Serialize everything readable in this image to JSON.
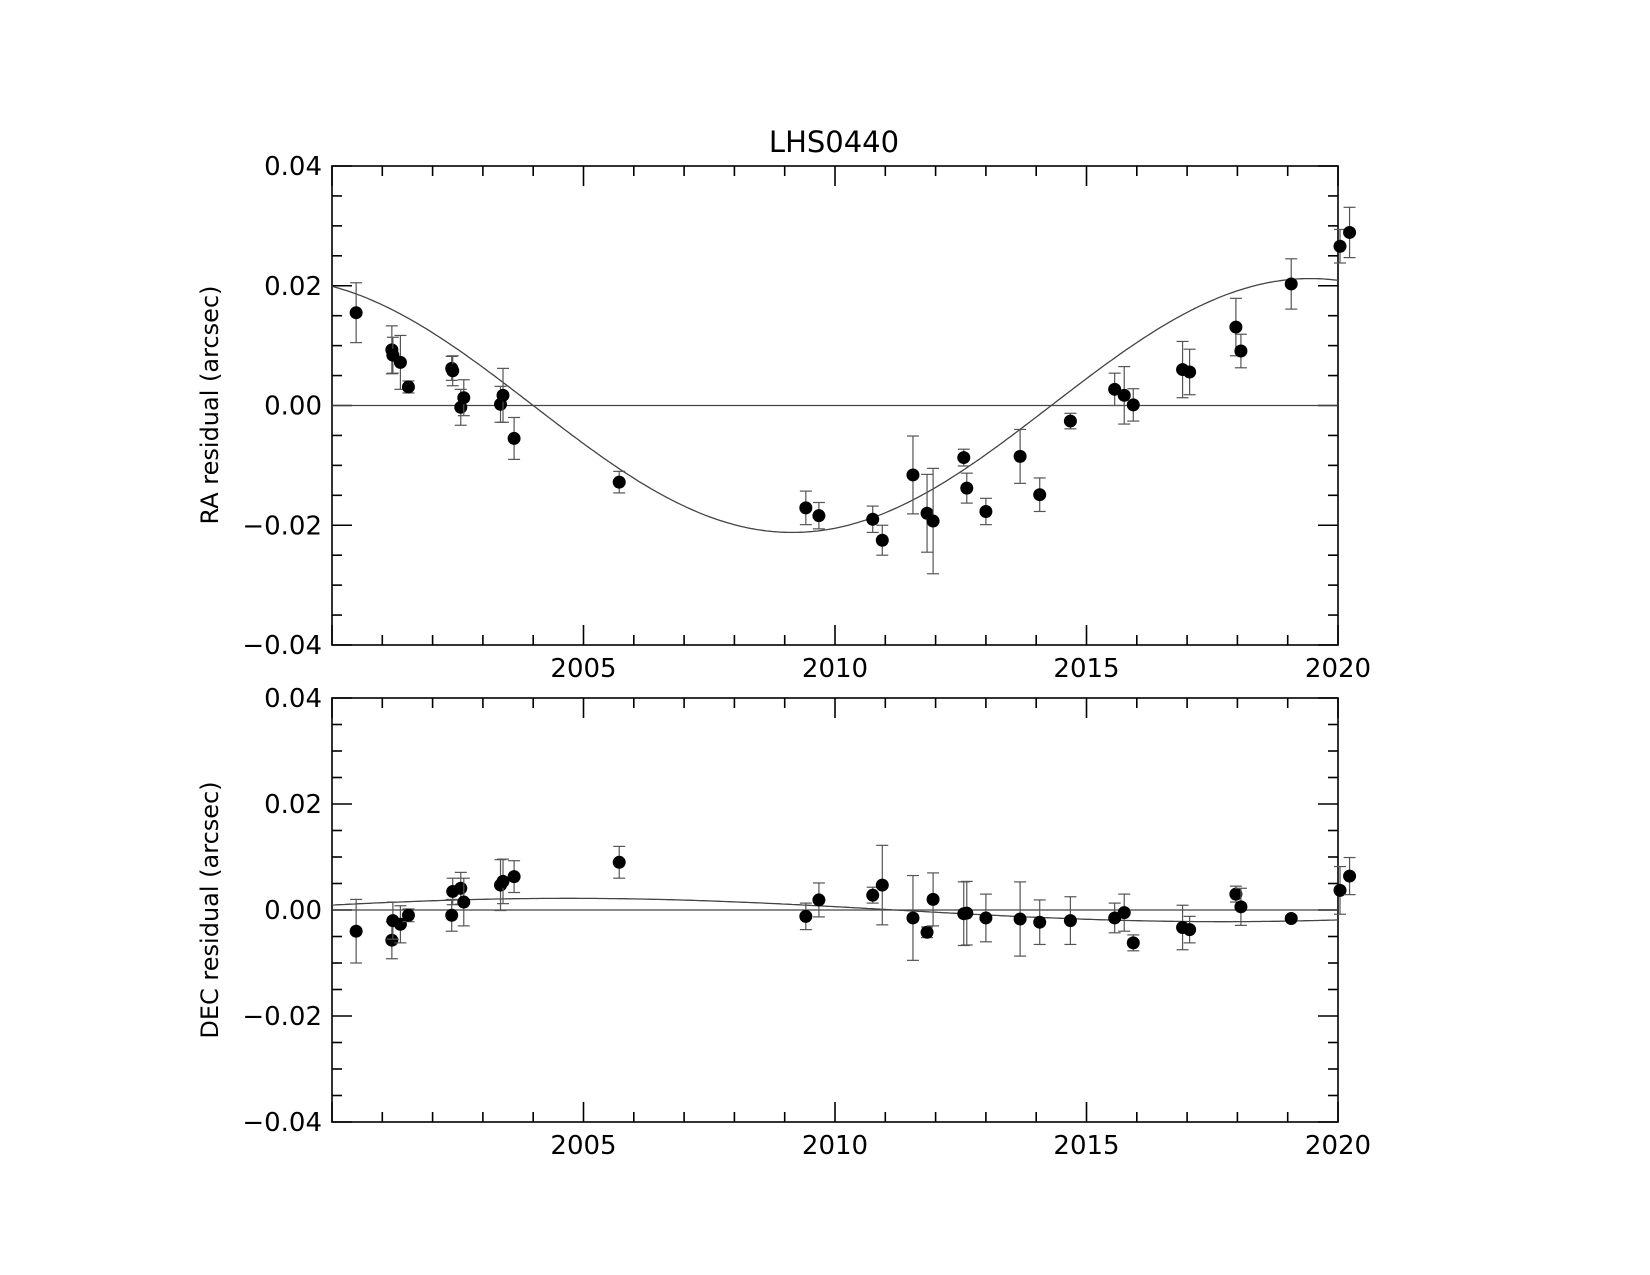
{
  "chart_data": [
    {
      "type": "scatter",
      "title": "LHS0440",
      "xlabel": "",
      "ylabel": "RA residual (arcsec)",
      "xlim": [
        2000.0,
        2020.0
      ],
      "ylim": [
        -0.04,
        0.04
      ],
      "xticks": [
        2005,
        2010,
        2015,
        2020
      ],
      "x_tick_labels": [
        "2005",
        "2010",
        "2015",
        "2020"
      ],
      "yticks": [
        -0.04,
        -0.02,
        0.0,
        0.02,
        0.04
      ],
      "y_tick_labels": [
        "−0.04",
        "−0.02",
        "0.00",
        "0.02",
        "0.04"
      ],
      "grid": false,
      "zero_line": true,
      "fit_curve": {
        "amplitude": 0.0212,
        "period_years": 20.6,
        "min_epoch": 2009.15,
        "offset": 0.0
      },
      "series": [
        {
          "x": [
            2000.48,
            2001.19,
            2001.21,
            2001.36,
            2001.52,
            2002.38,
            2002.4,
            2002.56,
            2002.62,
            2003.35,
            2003.4,
            2003.62,
            2005.71,
            2009.42,
            2009.68,
            2010.75,
            2010.94,
            2011.55,
            2011.83,
            2011.95,
            2012.56,
            2012.62,
            2013.0,
            2013.68,
            2014.07,
            2014.68,
            2015.56,
            2015.75,
            2015.93,
            2016.91,
            2017.05,
            2017.97,
            2018.07,
            2019.07,
            2020.04,
            2020.23
          ],
          "y": [
            0.0155,
            0.0093,
            0.0084,
            0.0072,
            0.0031,
            0.0062,
            0.0058,
            -0.0003,
            0.0013,
            0.0002,
            0.0017,
            -0.0055,
            -0.0128,
            -0.0171,
            -0.0184,
            -0.019,
            -0.0225,
            -0.0116,
            -0.018,
            -0.0193,
            -0.0087,
            -0.0138,
            -0.0177,
            -0.0085,
            -0.0149,
            -0.0026,
            0.0027,
            0.0017,
            0.0001,
            0.006,
            0.0056,
            0.0131,
            0.0091,
            0.0203,
            0.0266,
            0.0289
          ],
          "yerr": [
            0.005,
            0.004,
            0.003,
            0.0045,
            0.001,
            0.002,
            0.0025,
            0.003,
            0.003,
            0.003,
            0.0045,
            0.0035,
            0.0018,
            0.0028,
            0.0022,
            0.0022,
            0.0025,
            0.0065,
            0.0065,
            0.0088,
            0.0014,
            0.0025,
            0.0022,
            0.0045,
            0.0028,
            0.0013,
            0.0027,
            0.0048,
            0.0027,
            0.0047,
            0.0038,
            0.0048,
            0.0028,
            0.0042,
            0.0028,
            0.0042
          ]
        }
      ]
    },
    {
      "type": "scatter",
      "title": "",
      "xlabel": "",
      "ylabel": "DEC residual (arcsec)",
      "xlim": [
        2000.0,
        2020.0
      ],
      "ylim": [
        -0.04,
        0.04
      ],
      "xticks": [
        2005,
        2010,
        2015,
        2020
      ],
      "x_tick_labels": [
        "2005",
        "2010",
        "2015",
        "2020"
      ],
      "yticks": [
        -0.04,
        -0.02,
        0.0,
        0.02,
        0.04
      ],
      "y_tick_labels": [
        "−0.04",
        "−0.02",
        "0.00",
        "0.02",
        "0.04"
      ],
      "grid": false,
      "zero_line": true,
      "fit_curve": {
        "amplitude": 0.0022,
        "period_years": 26.0,
        "max_epoch": 2004.7,
        "offset": 0.0
      },
      "series": [
        {
          "x": [
            2000.48,
            2001.19,
            2001.21,
            2001.36,
            2001.52,
            2002.38,
            2002.4,
            2002.56,
            2002.62,
            2003.35,
            2003.4,
            2003.62,
            2005.71,
            2009.42,
            2009.68,
            2010.75,
            2010.94,
            2011.55,
            2011.83,
            2011.95,
            2012.56,
            2012.62,
            2013.0,
            2013.68,
            2014.07,
            2014.68,
            2015.56,
            2015.75,
            2015.93,
            2016.91,
            2017.05,
            2017.97,
            2018.07,
            2019.07,
            2020.04,
            2020.23
          ],
          "y": [
            -0.004,
            -0.0057,
            -0.002,
            -0.0027,
            -0.001,
            -0.001,
            0.0035,
            0.0041,
            0.0015,
            0.0047,
            0.0054,
            0.0063,
            0.009,
            -0.0012,
            0.0019,
            0.0028,
            0.0047,
            -0.0015,
            -0.0042,
            0.002,
            -0.0007,
            -0.0006,
            -0.0015,
            -0.0017,
            -0.0023,
            -0.002,
            -0.0015,
            -0.0005,
            -0.0062,
            -0.0033,
            -0.0037,
            0.003,
            0.0006,
            -0.0016,
            0.0037,
            0.0064
          ],
          "yerr": [
            0.006,
            0.0035,
            0.0035,
            0.0035,
            0.0012,
            0.003,
            0.0025,
            0.003,
            0.0045,
            0.0048,
            0.0042,
            0.003,
            0.003,
            0.0025,
            0.0032,
            0.0015,
            0.0075,
            0.008,
            0.001,
            0.005,
            0.006,
            0.006,
            0.0045,
            0.007,
            0.0042,
            0.0045,
            0.0028,
            0.0035,
            0.0015,
            0.0042,
            0.0025,
            0.0015,
            0.0035,
            0.0005,
            0.0045,
            0.0035
          ]
        }
      ]
    }
  ]
}
